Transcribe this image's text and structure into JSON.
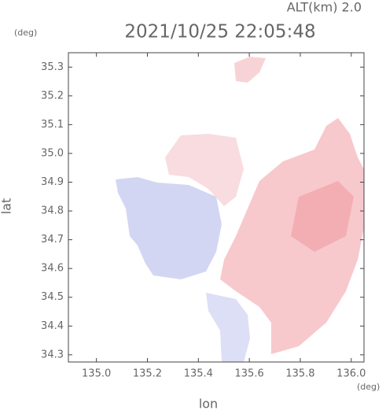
{
  "chart_data": {
    "type": "map",
    "title": "2021/10/25 22:05:48",
    "subtitle": "ALT(km) 2.0",
    "x_label": "lon",
    "y_label": "lat",
    "x_unit": "(deg)",
    "y_unit": "(deg)",
    "xlim": [
      134.89,
      136.05
    ],
    "ylim": [
      34.275,
      35.35
    ],
    "xticks": [
      {
        "value": 135,
        "label": "135.0"
      },
      135.2,
      135.4,
      135.6,
      135.8,
      {
        "value": 136,
        "label": "136.0"
      }
    ],
    "yticks": [
      34.3,
      34.4,
      34.5,
      34.6,
      34.7,
      34.8,
      34.9,
      {
        "value": 35,
        "label": "35.0"
      },
      35.1,
      35.2,
      35.3
    ]
  }
}
